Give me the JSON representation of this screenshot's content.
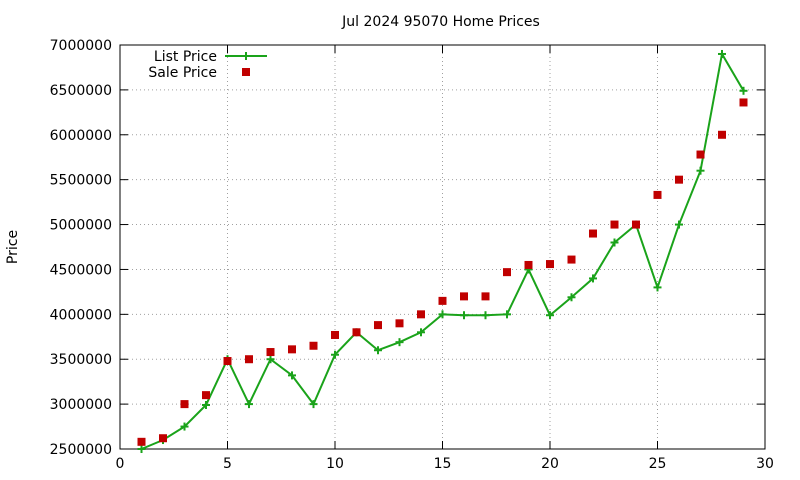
{
  "chart_data": {
    "type": "line",
    "title": "Jul 2024 95070 Home Prices",
    "xlabel": "",
    "ylabel": "Price",
    "xlim": [
      0,
      30
    ],
    "ylim": [
      2500000,
      7000000
    ],
    "xticks": [
      0,
      5,
      10,
      15,
      20,
      25,
      30
    ],
    "yticks": [
      2500000,
      3000000,
      3500000,
      4000000,
      4500000,
      5000000,
      5500000,
      6000000,
      6500000,
      7000000
    ],
    "grid": true,
    "legend_position": "top-left",
    "series": [
      {
        "name": "List Price",
        "style": "line-points",
        "marker": "plus",
        "color": "#1aa31a",
        "x": [
          1,
          2,
          3,
          4,
          5,
          6,
          7,
          8,
          9,
          10,
          11,
          12,
          13,
          14,
          15,
          16,
          17,
          18,
          19,
          20,
          21,
          22,
          23,
          24,
          25,
          26,
          27,
          28,
          29
        ],
        "y": [
          2500000,
          2600000,
          2750000,
          2990000,
          3500000,
          3000000,
          3500000,
          3320000,
          3000000,
          3550000,
          3800000,
          3600000,
          3690000,
          3800000,
          4000000,
          3990000,
          3990000,
          4000000,
          4500000,
          3990000,
          4190000,
          4400000,
          4800000,
          5000000,
          4300000,
          5000000,
          5600000,
          6900000,
          6490000
        ]
      },
      {
        "name": "Sale Price",
        "style": "points",
        "marker": "square",
        "color": "#c00000",
        "x": [
          1,
          2,
          3,
          4,
          5,
          6,
          7,
          8,
          9,
          10,
          11,
          12,
          13,
          14,
          15,
          16,
          17,
          18,
          19,
          20,
          21,
          22,
          23,
          24,
          25,
          26,
          27,
          28,
          29
        ],
        "y": [
          2580000,
          2620000,
          3000000,
          3100000,
          3480000,
          3500000,
          3580000,
          3610000,
          3650000,
          3770000,
          3800000,
          3880000,
          3900000,
          4000000,
          4150000,
          4200000,
          4200000,
          4470000,
          4550000,
          4560000,
          4610000,
          4900000,
          5000000,
          5000000,
          5330000,
          5500000,
          5780000,
          6000000,
          6360000
        ]
      }
    ]
  }
}
